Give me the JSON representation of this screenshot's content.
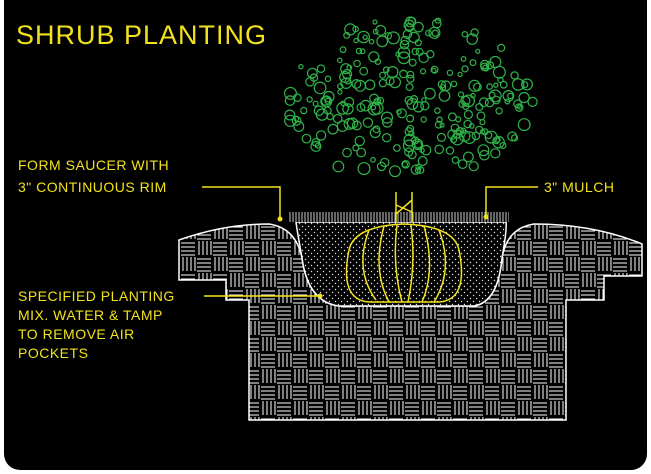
{
  "title": "SHRUB PLANTING",
  "callouts": [
    {
      "lines": [
        "FORM SAUCER WITH",
        "3\" CONTINUOUS RIM"
      ]
    },
    {
      "lines": [
        "3\" MULCH"
      ]
    },
    {
      "lines": [
        "SPECIFIED PLANTING",
        "MIX.  WATER & TAMP",
        "TO REMOVE AIR",
        "POCKETS"
      ]
    }
  ]
}
